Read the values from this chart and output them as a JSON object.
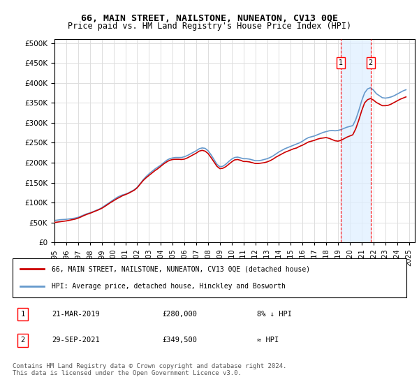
{
  "title": "66, MAIN STREET, NAILSTONE, NUNEATON, CV13 0QE",
  "subtitle": "Price paid vs. HM Land Registry's House Price Index (HPI)",
  "ylabel_ticks": [
    "£0",
    "£50K",
    "£100K",
    "£150K",
    "£200K",
    "£250K",
    "£300K",
    "£350K",
    "£400K",
    "£450K",
    "£500K"
  ],
  "ytick_values": [
    0,
    50000,
    100000,
    150000,
    200000,
    250000,
    300000,
    350000,
    400000,
    450000,
    500000
  ],
  "ylim": [
    0,
    510000
  ],
  "xlim_start": 1995.0,
  "xlim_end": 2025.5,
  "hpi_color": "#6699cc",
  "price_color": "#cc0000",
  "background_color": "#ffffff",
  "plot_bg_color": "#ffffff",
  "grid_color": "#dddddd",
  "annotation_bg": "#ddeeff",
  "marker1_x": 2019.22,
  "marker1_y": 280000,
  "marker2_x": 2021.75,
  "marker2_y": 349500,
  "legend_label1": "66, MAIN STREET, NAILSTONE, NUNEATON, CV13 0QE (detached house)",
  "legend_label2": "HPI: Average price, detached house, Hinckley and Bosworth",
  "table_entries": [
    {
      "num": "1",
      "date": "21-MAR-2019",
      "price": "£280,000",
      "hpi": "8% ↓ HPI"
    },
    {
      "num": "2",
      "date": "29-SEP-2021",
      "price": "£349,500",
      "hpi": "≈ HPI"
    }
  ],
  "footer": "Contains HM Land Registry data © Crown copyright and database right 2024.\nThis data is licensed under the Open Government Licence v3.0.",
  "xtick_years": [
    1995,
    1996,
    1997,
    1998,
    1999,
    2000,
    2001,
    2002,
    2003,
    2004,
    2005,
    2006,
    2007,
    2008,
    2009,
    2010,
    2011,
    2012,
    2013,
    2014,
    2015,
    2016,
    2017,
    2018,
    2019,
    2020,
    2021,
    2022,
    2023,
    2024,
    2025
  ],
  "hpi_data_x": [
    1995.0,
    1995.25,
    1995.5,
    1995.75,
    1996.0,
    1996.25,
    1996.5,
    1996.75,
    1997.0,
    1997.25,
    1997.5,
    1997.75,
    1998.0,
    1998.25,
    1998.5,
    1998.75,
    1999.0,
    1999.25,
    1999.5,
    1999.75,
    2000.0,
    2000.25,
    2000.5,
    2000.75,
    2001.0,
    2001.25,
    2001.5,
    2001.75,
    2002.0,
    2002.25,
    2002.5,
    2002.75,
    2003.0,
    2003.25,
    2003.5,
    2003.75,
    2004.0,
    2004.25,
    2004.5,
    2004.75,
    2005.0,
    2005.25,
    2005.5,
    2005.75,
    2006.0,
    2006.25,
    2006.5,
    2006.75,
    2007.0,
    2007.25,
    2007.5,
    2007.75,
    2008.0,
    2008.25,
    2008.5,
    2008.75,
    2009.0,
    2009.25,
    2009.5,
    2009.75,
    2010.0,
    2010.25,
    2010.5,
    2010.75,
    2011.0,
    2011.25,
    2011.5,
    2011.75,
    2012.0,
    2012.25,
    2012.5,
    2012.75,
    2013.0,
    2013.25,
    2013.5,
    2013.75,
    2014.0,
    2014.25,
    2014.5,
    2014.75,
    2015.0,
    2015.25,
    2015.5,
    2015.75,
    2016.0,
    2016.25,
    2016.5,
    2016.75,
    2017.0,
    2017.25,
    2017.5,
    2017.75,
    2018.0,
    2018.25,
    2018.5,
    2018.75,
    2019.0,
    2019.25,
    2019.5,
    2019.75,
    2020.0,
    2020.25,
    2020.5,
    2020.75,
    2021.0,
    2021.25,
    2021.5,
    2021.75,
    2022.0,
    2022.25,
    2022.5,
    2022.75,
    2023.0,
    2023.25,
    2023.5,
    2023.75,
    2024.0,
    2024.25,
    2024.5,
    2024.75
  ],
  "hpi_data_y": [
    55000,
    56000,
    57000,
    57500,
    58000,
    59000,
    60000,
    61000,
    63000,
    66000,
    69000,
    72000,
    74000,
    77000,
    80000,
    83000,
    87000,
    92000,
    97000,
    102000,
    107000,
    112000,
    116000,
    119000,
    121000,
    124000,
    128000,
    132000,
    138000,
    147000,
    157000,
    165000,
    172000,
    178000,
    184000,
    189000,
    194000,
    200000,
    206000,
    210000,
    212000,
    213000,
    213000,
    213000,
    215000,
    218000,
    222000,
    226000,
    230000,
    235000,
    237000,
    236000,
    230000,
    220000,
    208000,
    196000,
    190000,
    191000,
    196000,
    203000,
    209000,
    213000,
    214000,
    212000,
    210000,
    210000,
    209000,
    207000,
    205000,
    205000,
    206000,
    208000,
    210000,
    213000,
    217000,
    222000,
    227000,
    231000,
    235000,
    238000,
    241000,
    244000,
    247000,
    250000,
    254000,
    259000,
    263000,
    265000,
    267000,
    270000,
    273000,
    276000,
    278000,
    280000,
    281000,
    280000,
    281000,
    283000,
    286000,
    289000,
    291000,
    293000,
    308000,
    330000,
    355000,
    375000,
    385000,
    388000,
    382000,
    373000,
    368000,
    363000,
    362000,
    363000,
    365000,
    368000,
    372000,
    376000,
    380000,
    383000
  ],
  "price_data_x": [
    1995.0,
    1995.25,
    1995.5,
    1995.75,
    1996.0,
    1996.25,
    1996.5,
    1996.75,
    1997.0,
    1997.25,
    1997.5,
    1997.75,
    1998.0,
    1998.25,
    1998.5,
    1998.75,
    1999.0,
    1999.25,
    1999.5,
    1999.75,
    2000.0,
    2000.25,
    2000.5,
    2000.75,
    2001.0,
    2001.25,
    2001.5,
    2001.75,
    2002.0,
    2002.25,
    2002.5,
    2002.75,
    2003.0,
    2003.25,
    2003.5,
    2003.75,
    2004.0,
    2004.25,
    2004.5,
    2004.75,
    2005.0,
    2005.25,
    2005.5,
    2005.75,
    2006.0,
    2006.25,
    2006.5,
    2006.75,
    2007.0,
    2007.25,
    2007.5,
    2007.75,
    2008.0,
    2008.25,
    2008.5,
    2008.75,
    2009.0,
    2009.25,
    2009.5,
    2009.75,
    2010.0,
    2010.25,
    2010.5,
    2010.75,
    2011.0,
    2011.25,
    2011.5,
    2011.75,
    2012.0,
    2012.25,
    2012.5,
    2012.75,
    2013.0,
    2013.25,
    2013.5,
    2013.75,
    2014.0,
    2014.25,
    2014.5,
    2014.75,
    2015.0,
    2015.25,
    2015.5,
    2015.75,
    2016.0,
    2016.25,
    2016.5,
    2016.75,
    2017.0,
    2017.25,
    2017.5,
    2017.75,
    2018.0,
    2018.25,
    2018.5,
    2018.75,
    2019.0,
    2019.25,
    2019.5,
    2019.75,
    2020.0,
    2020.25,
    2020.5,
    2020.75,
    2021.0,
    2021.25,
    2021.5,
    2021.75,
    2022.0,
    2022.25,
    2022.5,
    2022.75,
    2023.0,
    2023.25,
    2023.5,
    2023.75,
    2024.0,
    2024.25,
    2024.5,
    2024.75
  ],
  "price_data_y": [
    50000,
    51000,
    52000,
    53000,
    54000,
    55500,
    57000,
    58500,
    61000,
    64000,
    67500,
    70500,
    73000,
    76000,
    79000,
    82000,
    85500,
    90000,
    95000,
    100000,
    104500,
    109000,
    113000,
    117000,
    120000,
    123000,
    127000,
    131000,
    137000,
    146000,
    155000,
    162000,
    168000,
    174000,
    180000,
    185000,
    191000,
    197000,
    202000,
    206000,
    208000,
    208500,
    208500,
    208000,
    209000,
    212000,
    216000,
    220000,
    224000,
    229000,
    231000,
    229000,
    223000,
    213000,
    202000,
    191000,
    185000,
    186000,
    190000,
    196000,
    202000,
    207000,
    208000,
    206000,
    203000,
    203000,
    202000,
    200000,
    198000,
    198000,
    199000,
    200000,
    202000,
    205000,
    209000,
    214000,
    218000,
    222000,
    226000,
    229000,
    232000,
    235000,
    237000,
    241000,
    244000,
    248000,
    252000,
    254000,
    256000,
    259000,
    261000,
    262000,
    263000,
    261000,
    258000,
    255000,
    254000,
    256000,
    260000,
    264000,
    267000,
    270000,
    285000,
    306000,
    330000,
    350000,
    358000,
    361000,
    357000,
    351000,
    347000,
    343000,
    343000,
    344000,
    347000,
    351000,
    355000,
    359000,
    362000,
    365000
  ]
}
